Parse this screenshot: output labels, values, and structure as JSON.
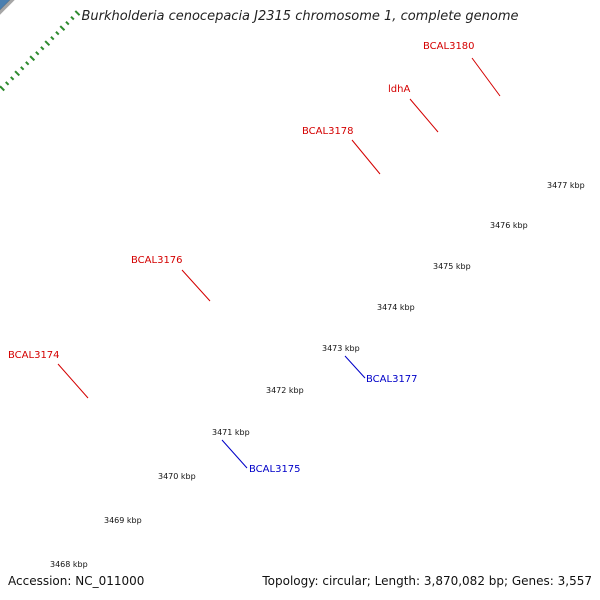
{
  "header": {
    "title": "Burkholderia cenocepacia J2315 chromosome 1, complete genome"
  },
  "footer": {
    "accession": "Accession: NC_011000",
    "summary": "Topology: circular; Length: 3,870,082 bp; Genes: 3,557"
  },
  "colors": {
    "backbone": "#808080",
    "gc_ticks": "#2e8b2e",
    "forward_label": "#d40000",
    "reverse_label": "#0000c8",
    "red_gene": "#e8191c",
    "blue_gene": "#1111dd",
    "steel_gene": "#4a7fb0",
    "cyan_gene": "#22ccee",
    "teal_gene": "#22b3b8",
    "orange_gene": "#f08c0c",
    "navy_gene": "#2020a0"
  },
  "ruler": {
    "unit": "kbp",
    "ticks": [
      {
        "label": "3468 kbp"
      },
      {
        "label": "3469 kbp"
      },
      {
        "label": "3470 kbp"
      },
      {
        "label": "3471 kbp"
      },
      {
        "label": "3472 kbp"
      },
      {
        "label": "3473 kbp"
      },
      {
        "label": "3474 kbp"
      },
      {
        "label": "3475 kbp"
      },
      {
        "label": "3476 kbp"
      },
      {
        "label": "3477 kbp"
      }
    ]
  },
  "gene_labels": [
    {
      "name": "BCAL3174",
      "strand": "forward"
    },
    {
      "name": "BCAL3175",
      "strand": "reverse"
    },
    {
      "name": "BCAL3176",
      "strand": "forward"
    },
    {
      "name": "BCAL3177",
      "strand": "reverse"
    },
    {
      "name": "BCAL3178",
      "strand": "forward"
    },
    {
      "name": "ldhA",
      "strand": "forward"
    },
    {
      "name": "BCAL3180",
      "strand": "forward"
    }
  ]
}
